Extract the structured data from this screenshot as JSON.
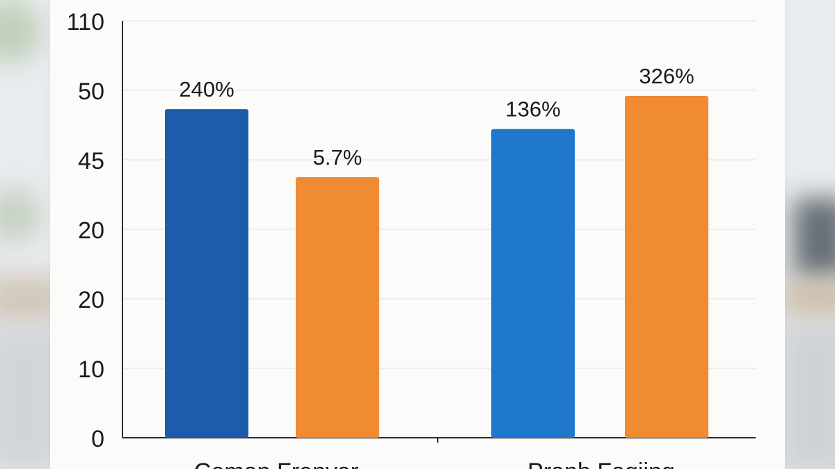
{
  "chart_data": {
    "type": "bar",
    "title": "",
    "xlabel": "",
    "ylabel": "",
    "y_ticks": [
      "110",
      "50",
      "45",
      "20",
      "20",
      "10",
      "0"
    ],
    "grid": true,
    "categories": [
      "Comap Frenyar",
      "Pranb Faqiing"
    ],
    "series": [
      {
        "color": "#1d5cab",
        "alt_colors": [
          "#1d5cab",
          "#1f78cc"
        ],
        "values": [
          240,
          136
        ],
        "labels": [
          "240%",
          "136%"
        ]
      },
      {
        "color": "#f08a33",
        "values": [
          5.7,
          326
        ],
        "labels": [
          "5.7%",
          "326%"
        ]
      }
    ]
  }
}
